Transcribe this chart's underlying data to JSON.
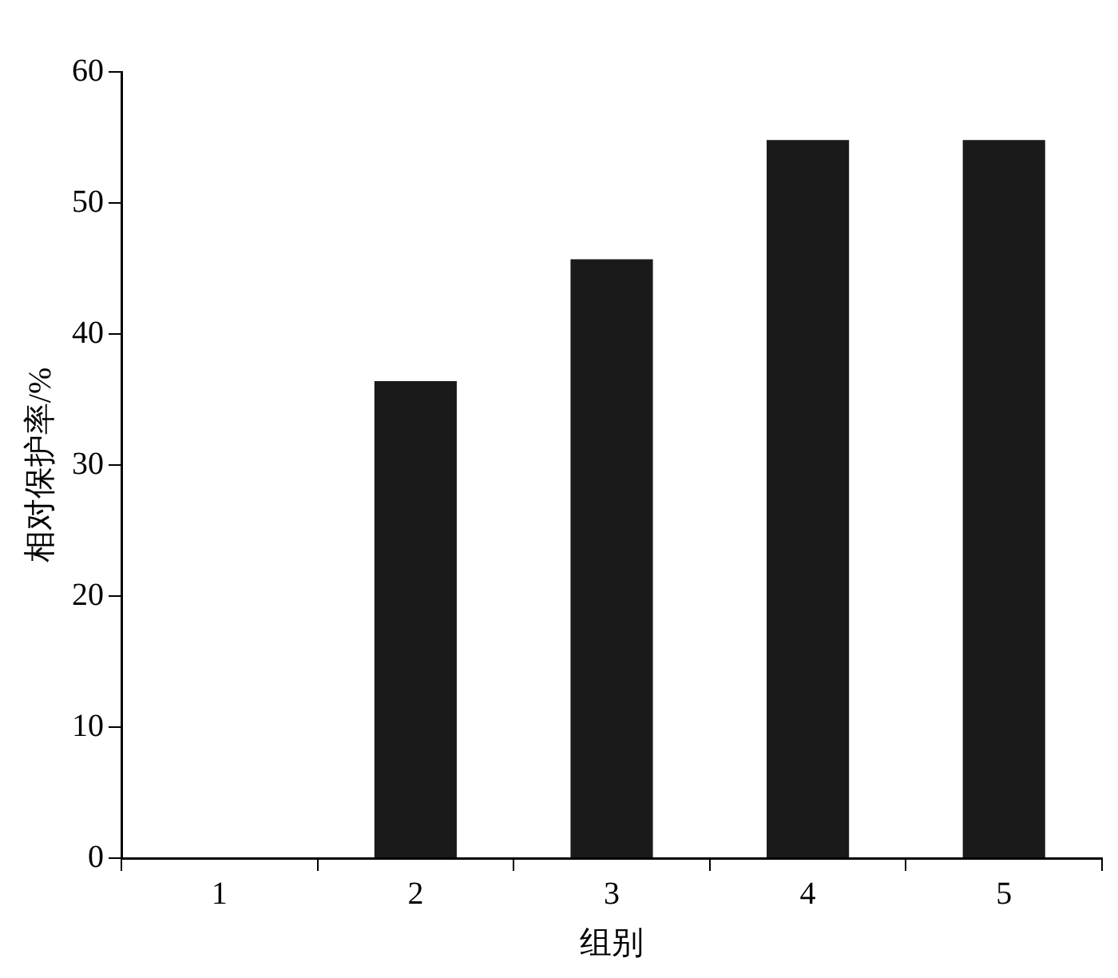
{
  "chart_data": {
    "type": "bar",
    "xlabel": "组别",
    "ylabel": "相对保护率/%",
    "categories": [
      "1",
      "2",
      "3",
      "4",
      "5"
    ],
    "values": [
      0,
      36.4,
      45.7,
      54.8,
      54.8
    ],
    "color": "#1a1a1a",
    "ylim": [
      0,
      60
    ],
    "yticks": [
      0,
      10,
      20,
      30,
      40,
      50,
      60
    ],
    "grid": false,
    "legend": false
  }
}
